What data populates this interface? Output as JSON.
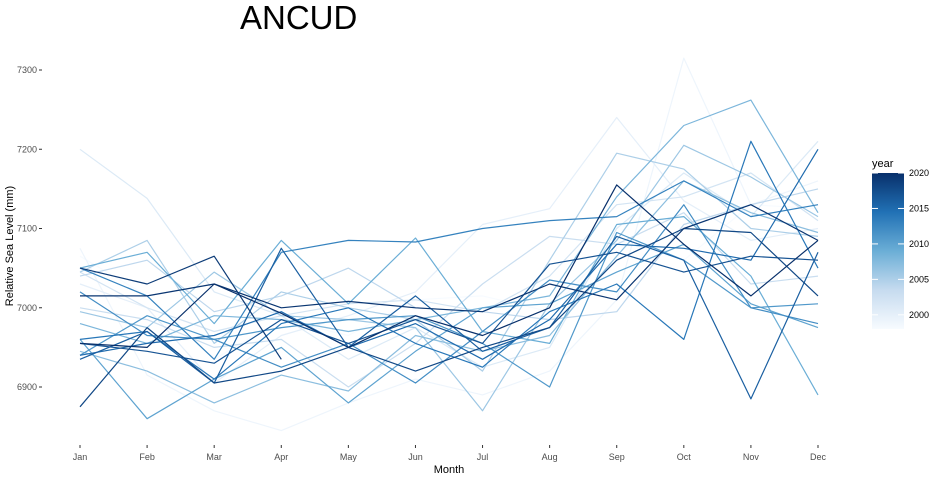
{
  "chart_data": {
    "type": "line",
    "title": "ANCUD",
    "xlabel": "Month",
    "ylabel": "Relative Sea Level (mm)",
    "categories": [
      "Jan",
      "Feb",
      "Mar",
      "Apr",
      "May",
      "Jun",
      "Jul",
      "Aug",
      "Sep",
      "Oct",
      "Nov",
      "Dec"
    ],
    "ylim": [
      6835,
      7325
    ],
    "yticks": [
      6900,
      7000,
      7100,
      7200,
      7300
    ],
    "grid": false,
    "legend": {
      "title": "year",
      "placement": "right",
      "type": "colorbar",
      "range": [
        1998,
        2020
      ],
      "ticks": [
        2000,
        2005,
        2010,
        2015,
        2020
      ],
      "low_color": "#f7fbff",
      "high_color": "#08306b"
    },
    "series": [
      {
        "year": 1998,
        "values": [
          7065,
          7015,
          6935,
          6985,
          6965,
          7010,
          7015,
          6995,
          7085,
          7060,
          7130,
          7125
        ]
      },
      {
        "year": 1999,
        "values": [
          7075,
          6915,
          6870,
          6845,
          6880,
          6910,
          6890,
          6920,
          7010,
          7315,
          7130,
          7160
        ]
      },
      {
        "year": 2000,
        "values": [
          7030,
          7000,
          6905,
          6965,
          6990,
          7020,
          7105,
          7125,
          7240,
          7135,
          7085,
          7100
        ]
      },
      {
        "year": 2001,
        "values": [
          7200,
          7138,
          7020,
          6990,
          6935,
          6975,
          6925,
          6950,
          7100,
          7170,
          7115,
          7210
        ]
      },
      {
        "year": 2002,
        "values": [
          7045,
          7000,
          6970,
          6990,
          7005,
          7010,
          6995,
          7040,
          7130,
          7140,
          7170,
          7110
        ]
      },
      {
        "year": 2003,
        "values": [
          7000,
          6985,
          6950,
          6960,
          6900,
          6955,
          7030,
          7090,
          7080,
          7120,
          7030,
          7040
        ]
      },
      {
        "year": 2004,
        "values": [
          7040,
          7060,
          6995,
          7015,
          7050,
          7000,
          6995,
          6985,
          6995,
          7105,
          7130,
          7150
        ]
      },
      {
        "year": 2005,
        "values": [
          7045,
          7085,
          6955,
          7020,
          7000,
          6985,
          6920,
          7060,
          7195,
          7175,
          7100,
          7090
        ]
      },
      {
        "year": 2006,
        "values": [
          6995,
          6975,
          7045,
          6990,
          6985,
          6975,
          6870,
          7005,
          7085,
          7205,
          7165,
          7115
        ]
      },
      {
        "year": 2007,
        "values": [
          6945,
          6920,
          6880,
          6915,
          6895,
          6965,
          6945,
          6965,
          7065,
          7160,
          7120,
          7095
        ]
      },
      {
        "year": 2008,
        "values": [
          6980,
          6955,
          6990,
          6985,
          6970,
          6985,
          7000,
          7015,
          7140,
          7230,
          7262,
          7120
        ]
      },
      {
        "year": 2009,
        "values": [
          7050,
          7070,
          6980,
          7085,
          7005,
          7088,
          6970,
          6955,
          7105,
          7115,
          7040,
          6890
        ]
      },
      {
        "year": 2010,
        "values": [
          6960,
          6860,
          6910,
          6950,
          6880,
          6945,
          7000,
          7005,
          7045,
          7080,
          7005,
          6975
        ]
      },
      {
        "year": 2011,
        "values": [
          6940,
          6990,
          6960,
          6975,
          6985,
          6990,
          6955,
          6900,
          7095,
          7060,
          7000,
          7005
        ]
      },
      {
        "year": 2012,
        "values": [
          7020,
          6965,
          6960,
          6925,
          6955,
          6905,
          6970,
          7035,
          7020,
          7130,
          7000,
          6980
        ]
      },
      {
        "year": 2013,
        "values": [
          7050,
          7015,
          6935,
          7070,
          7085,
          7083,
          7100,
          7110,
          7115,
          7160,
          7115,
          7130
        ]
      },
      {
        "year": 2014,
        "values": [
          6960,
          6970,
          6910,
          6980,
          7000,
          6955,
          6925,
          6995,
          7030,
          6960,
          7210,
          7050
        ]
      },
      {
        "year": 2015,
        "values": [
          6940,
          6955,
          6965,
          6995,
          6950,
          6980,
          6935,
          6985,
          7080,
          7075,
          7060,
          7200
        ]
      },
      {
        "year": 2016,
        "values": [
          6935,
          6970,
          6905,
          7075,
          6950,
          7015,
          6945,
          6975,
          7090,
          7060,
          6885,
          7070
        ]
      },
      {
        "year": 2017,
        "values": [
          6955,
          6945,
          6930,
          6985,
          6955,
          6985,
          6955,
          7055,
          7070,
          7045,
          7065,
          7060
        ]
      },
      {
        "year": 2018,
        "values": [
          6875,
          6975,
          6905,
          6920,
          6950,
          6920,
          6950,
          6975,
          7060,
          7100,
          7095,
          7015
        ]
      },
      {
        "year": 2019,
        "values": [
          7050,
          7030,
          7065,
          6935,
          null,
          null,
          null,
          null,
          null,
          null,
          null,
          null
        ]
      },
      {
        "year": 2019.5,
        "values": [
          7015,
          7015,
          7030,
          7000,
          7008,
          7000,
          6995,
          7030,
          7010,
          7100,
          7130,
          7085
        ]
      },
      {
        "year": 2020,
        "values": [
          6955,
          6950,
          7030,
          6993,
          6950,
          6990,
          6965,
          7000,
          7155,
          7080,
          7015,
          7085
        ]
      }
    ]
  }
}
